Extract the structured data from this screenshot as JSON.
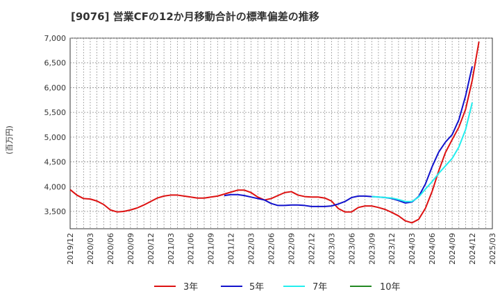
{
  "chart_data": {
    "type": "line",
    "title": "[9076]  営業CFの12か月移動合計の標準偏差の推移",
    "ylabel": "(百万円)",
    "xlabel": "",
    "ylim": [
      3150,
      7000
    ],
    "yticks": [
      3500,
      4000,
      4500,
      5000,
      5500,
      6000,
      6500,
      7000
    ],
    "ytick_labels": [
      "3,500",
      "4,000",
      "4,500",
      "5,000",
      "5,500",
      "6,000",
      "6,500",
      "7,000"
    ],
    "xtick_labels": [
      "2019/12",
      "2020/03",
      "2020/06",
      "2020/09",
      "2020/12",
      "2021/03",
      "2021/06",
      "2021/09",
      "2021/12",
      "2022/03",
      "2022/06",
      "2022/09",
      "2022/12",
      "2023/03",
      "2023/06",
      "2023/09",
      "2023/12",
      "2024/03",
      "2024/06",
      "2024/09",
      "2024/12",
      "2025/03"
    ],
    "grid": true,
    "legend_position": "bottom",
    "series": [
      {
        "name": "3年",
        "color": "#dd1111",
        "start": "2019/12",
        "values": [
          3940,
          3830,
          3760,
          3750,
          3710,
          3640,
          3530,
          3490,
          3500,
          3530,
          3570,
          3630,
          3700,
          3770,
          3810,
          3830,
          3830,
          3810,
          3790,
          3770,
          3770,
          3790,
          3810,
          3850,
          3890,
          3930,
          3930,
          3880,
          3790,
          3730,
          3760,
          3820,
          3880,
          3900,
          3830,
          3800,
          3790,
          3790,
          3770,
          3710,
          3560,
          3490,
          3490,
          3580,
          3610,
          3610,
          3580,
          3540,
          3480,
          3410,
          3310,
          3270,
          3340,
          3560,
          3900,
          4320,
          4690,
          4950,
          5200,
          5560,
          6150,
          6930
        ]
      },
      {
        "name": "5年",
        "color": "#1111cc",
        "start": "2021/11",
        "values": [
          3820,
          3840,
          3840,
          3820,
          3790,
          3760,
          3730,
          3660,
          3620,
          3620,
          3630,
          3630,
          3620,
          3600,
          3600,
          3600,
          3610,
          3650,
          3700,
          3780,
          3810,
          3810,
          3800,
          3790,
          3780,
          3760,
          3720,
          3670,
          3690,
          3800,
          4050,
          4400,
          4700,
          4900,
          5050,
          5350,
          5830,
          6430
        ]
      },
      {
        "name": "7年",
        "color": "#22eeee",
        "start": "2023/09",
        "values": [
          3800,
          3790,
          3780,
          3770,
          3740,
          3700,
          3700,
          3790,
          3950,
          4100,
          4270,
          4420,
          4570,
          4800,
          5150,
          5700
        ]
      },
      {
        "name": "10年",
        "color": "#228822",
        "start": "2019/12",
        "values": []
      }
    ]
  }
}
